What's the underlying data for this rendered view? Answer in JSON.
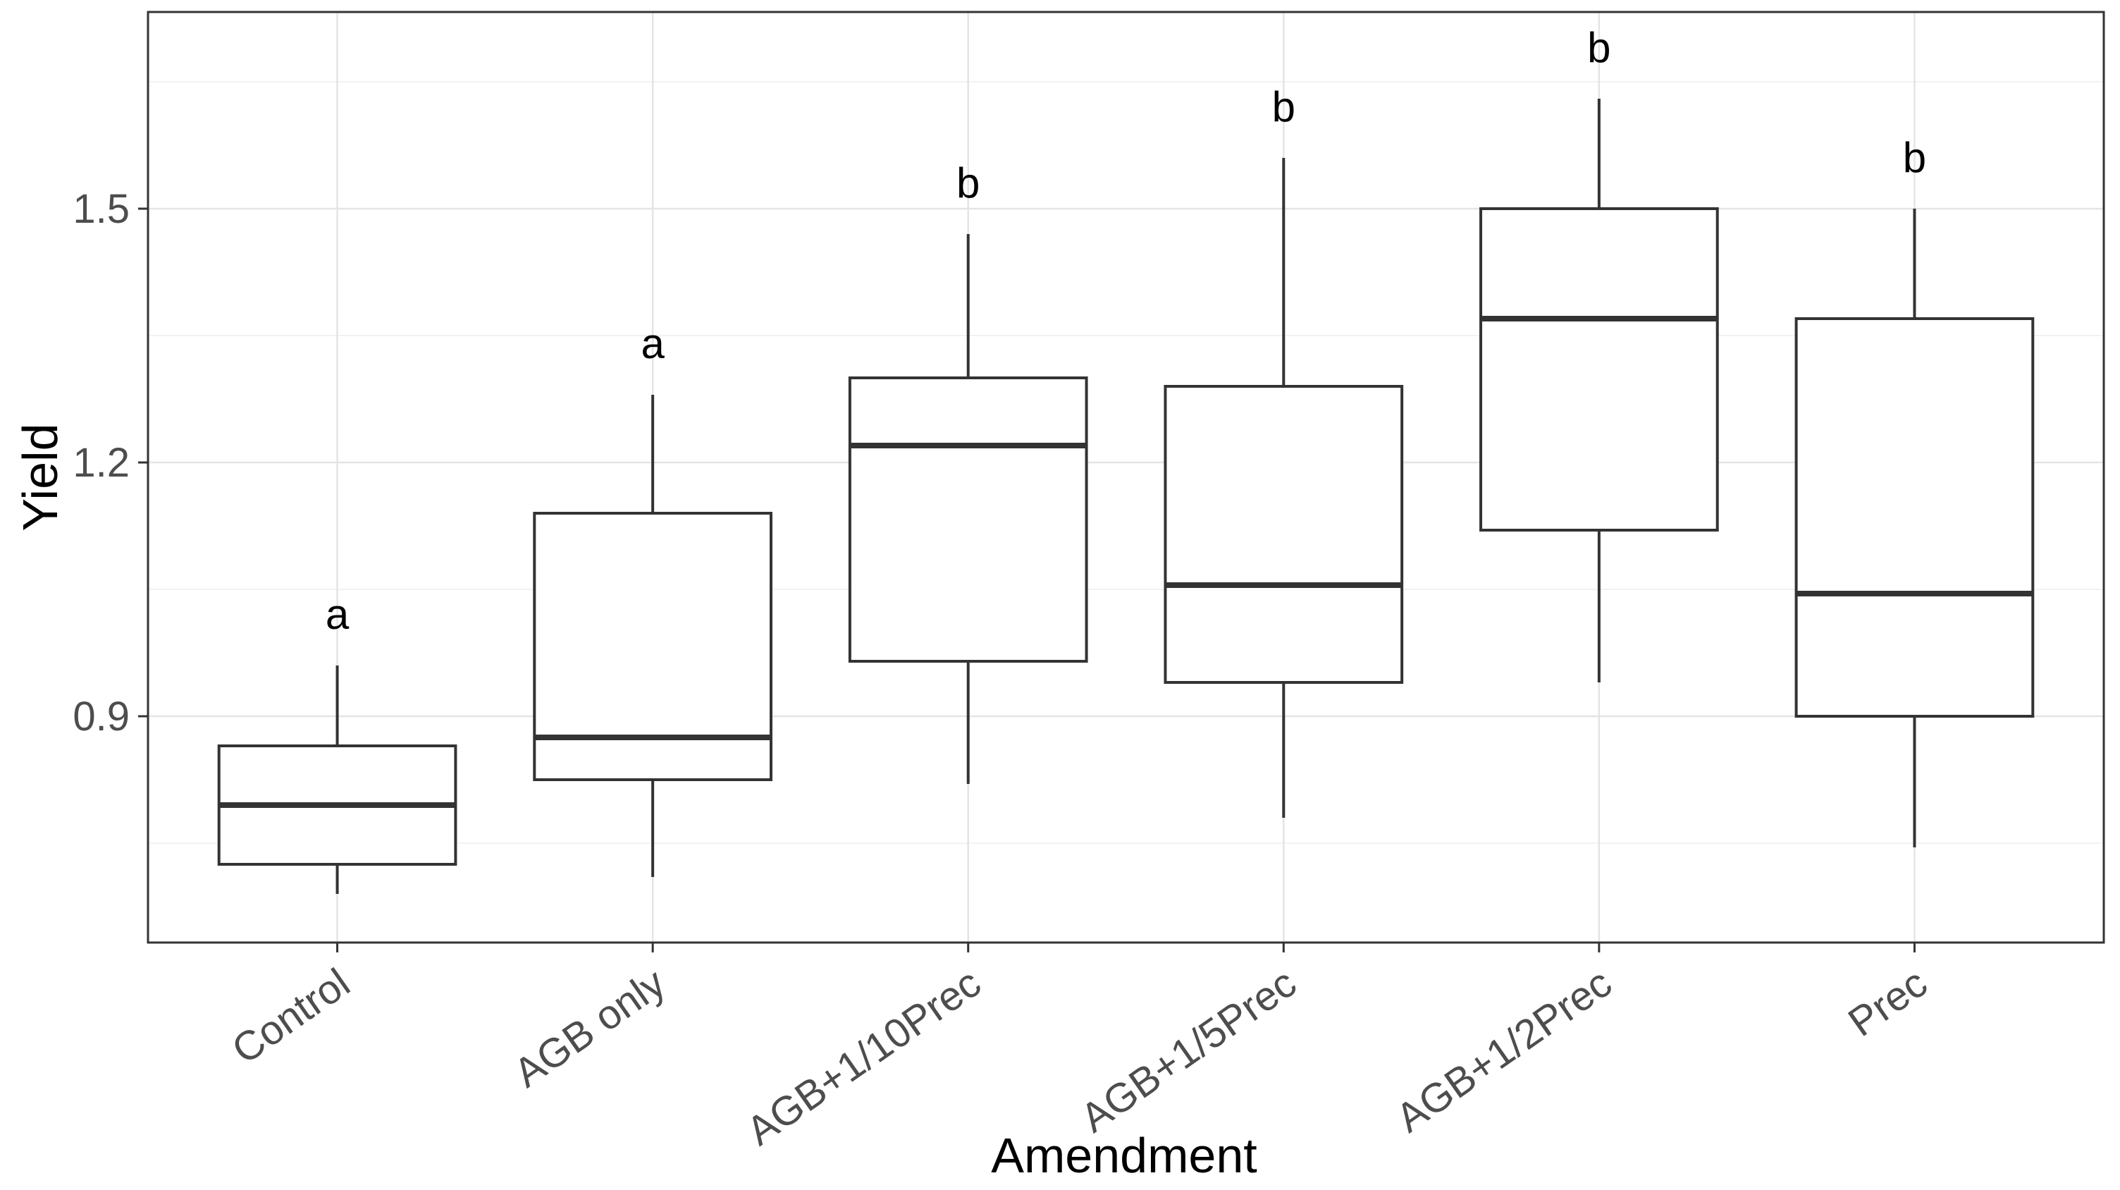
{
  "figure": {
    "x_axis_title": "Amendment",
    "y_axis_title": "Yield"
  },
  "chart_data": {
    "type": "boxplot",
    "title": "",
    "xlabel": "Amendment",
    "ylabel": "Yield",
    "categories": [
      "Control",
      "AGB only",
      "AGB+1/10Prec",
      "AGB+1/5Prec",
      "AGB+1/2Prec",
      "Prec"
    ],
    "boxes": [
      {
        "category": "Control",
        "whisker_low": 0.69,
        "q1": 0.725,
        "median": 0.795,
        "q3": 0.865,
        "whisker_high": 0.96,
        "sig_letter": "a",
        "sig_letter_y": 1.02
      },
      {
        "category": "AGB only",
        "whisker_low": 0.71,
        "q1": 0.825,
        "median": 0.875,
        "q3": 1.14,
        "whisker_high": 1.28,
        "sig_letter": "a",
        "sig_letter_y": 1.34
      },
      {
        "category": "AGB+1/10Prec",
        "whisker_low": 0.82,
        "q1": 0.965,
        "median": 1.22,
        "q3": 1.3,
        "whisker_high": 1.47,
        "sig_letter": "b",
        "sig_letter_y": 1.53
      },
      {
        "category": "AGB+1/5Prec",
        "whisker_low": 0.78,
        "q1": 0.94,
        "median": 1.055,
        "q3": 1.29,
        "whisker_high": 1.56,
        "sig_letter": "b",
        "sig_letter_y": 1.62
      },
      {
        "category": "AGB+1/2Prec",
        "whisker_low": 0.94,
        "q1": 1.12,
        "median": 1.37,
        "q3": 1.5,
        "whisker_high": 1.63,
        "sig_letter": "b",
        "sig_letter_y": 1.69
      },
      {
        "category": "Prec",
        "whisker_low": 0.745,
        "q1": 0.9,
        "median": 1.045,
        "q3": 1.37,
        "whisker_high": 1.5,
        "sig_letter": "b",
        "sig_letter_y": 1.56
      }
    ],
    "y_axis": {
      "tick_labels": [
        "0.9",
        "1.2",
        "1.5"
      ],
      "tick_values": [
        0.9,
        1.2,
        1.5
      ],
      "minor_grid_values": [
        0.75,
        1.05,
        1.35,
        1.65
      ],
      "range": [
        0.6325,
        1.7325
      ]
    },
    "x_axis": {
      "label_angle_deg": -35,
      "tick_at_each_category": true
    },
    "legend": "none",
    "grid": {
      "horizontal_major": true,
      "horizontal_minor": true,
      "vertical_major_at_categories": true
    },
    "colors": {
      "background": "#ffffff",
      "panel_background": "#ffffff",
      "panel_border": "#333333",
      "box_stroke": "#333333",
      "box_fill": "#ffffff",
      "grid_major": "#e4e4e4",
      "grid_minor": "#f2f2f2",
      "tick_mark": "#333333",
      "tick_label_color": "#4d4d4d",
      "axis_title_color": "#000000",
      "sig_letter_color": "#000000"
    }
  }
}
